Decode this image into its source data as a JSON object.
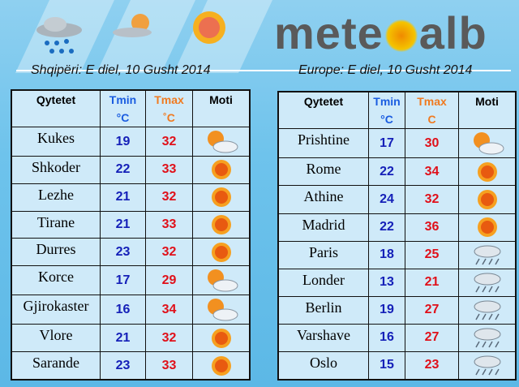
{
  "logo": "meteoalb",
  "left": {
    "date": "Shqipëri:  E  diel, 10 Gusht 2014",
    "headers": {
      "city": "Qytetet",
      "tmin": "Tmin",
      "tmin_unit": "°C",
      "tmax": "Tmax",
      "tmax_unit": "˚C",
      "weather": "Moti"
    },
    "rows": [
      {
        "city": "Kukes",
        "tmin": "19",
        "tmax": "32",
        "icon": "sun-cloud"
      },
      {
        "city": "Shkoder",
        "tmin": "22",
        "tmax": "33",
        "icon": "sun"
      },
      {
        "city": "Lezhe",
        "tmin": "21",
        "tmax": "32",
        "icon": "sun"
      },
      {
        "city": "Tirane",
        "tmin": "21",
        "tmax": "33",
        "icon": "sun"
      },
      {
        "city": "Durres",
        "tmin": "23",
        "tmax": "32",
        "icon": "sun"
      },
      {
        "city": "Korce",
        "tmin": "17",
        "tmax": "29",
        "icon": "sun-cloud"
      },
      {
        "city": "Gjirokaster",
        "tmin": "16",
        "tmax": "34",
        "icon": "sun-cloud"
      },
      {
        "city": "Vlore",
        "tmin": "21",
        "tmax": "32",
        "icon": "sun"
      },
      {
        "city": "Sarande",
        "tmin": "23",
        "tmax": "33",
        "icon": "sun"
      }
    ]
  },
  "right": {
    "date": "Europe:  E diel, 10  Gusht 2014",
    "headers": {
      "city": "Qytetet",
      "tmin": "Tmin",
      "tmin_unit": "°C",
      "tmax": "Tmax",
      "tmax_unit": "C",
      "weather": "Moti"
    },
    "rows": [
      {
        "city": "Prishtine",
        "tmin": "17",
        "tmax": "30",
        "icon": "sun-cloud"
      },
      {
        "city": "Rome",
        "tmin": "22",
        "tmax": "34",
        "icon": "sun"
      },
      {
        "city": "Athine",
        "tmin": "24",
        "tmax": "32",
        "icon": "sun"
      },
      {
        "city": "Madrid",
        "tmin": "22",
        "tmax": "36",
        "icon": "sun"
      },
      {
        "city": "Paris",
        "tmin": "18",
        "tmax": "25",
        "icon": "rain-cloud"
      },
      {
        "city": "Londer",
        "tmin": "13",
        "tmax": "21",
        "icon": "rain-cloud"
      },
      {
        "city": "Berlin",
        "tmin": "19",
        "tmax": "27",
        "icon": "rain-cloud"
      },
      {
        "city": "Varshave",
        "tmin": "16",
        "tmax": "27",
        "icon": "rain-cloud"
      },
      {
        "city": "Oslo",
        "tmin": "15",
        "tmax": "23",
        "icon": "rain-cloud"
      }
    ]
  }
}
